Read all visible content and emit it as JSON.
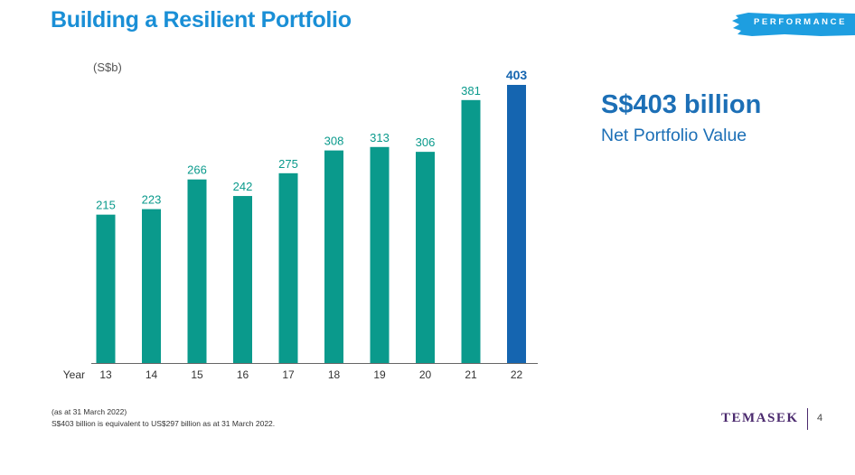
{
  "header": {
    "title": "Building a Resilient Portfolio",
    "section_badge": "PERFORMANCE"
  },
  "highlight": {
    "value": "S$403 billion",
    "label": "Net Portfolio Value"
  },
  "footnotes": {
    "date_note": "(as at 31 March 2022)",
    "conversion_note": "S$403 billion is equivalent to US$297 billion as at 31 March 2022."
  },
  "footer": {
    "logo_text": "TEMASEK",
    "page_number": "4"
  },
  "colors": {
    "bar": "#0a9a8c",
    "bar_highlight": "#1565b0",
    "title": "#1a8fd6",
    "badge": "#1e9ee0",
    "logo": "#4b2a6e"
  },
  "chart_data": {
    "type": "bar",
    "title": "",
    "ylabel": "(S$b)",
    "xlabel": "Year",
    "categories": [
      "13",
      "14",
      "15",
      "16",
      "17",
      "18",
      "19",
      "20",
      "21",
      "22"
    ],
    "values": [
      215,
      223,
      266,
      242,
      275,
      308,
      313,
      306,
      381,
      403
    ],
    "highlight_index": 9,
    "ylim": [
      0,
      403
    ],
    "grid": false,
    "legend": "none"
  }
}
